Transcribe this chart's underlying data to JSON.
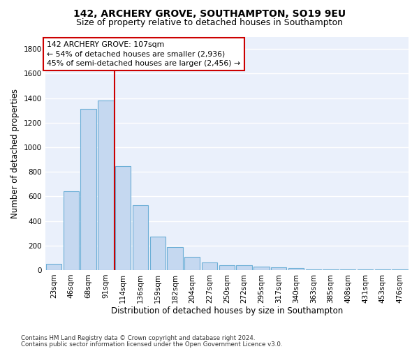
{
  "title1": "142, ARCHERY GROVE, SOUTHAMPTON, SO19 9EU",
  "title2": "Size of property relative to detached houses in Southampton",
  "xlabel": "Distribution of detached houses by size in Southampton",
  "ylabel": "Number of detached properties",
  "bar_labels": [
    "23sqm",
    "46sqm",
    "68sqm",
    "91sqm",
    "114sqm",
    "136sqm",
    "159sqm",
    "182sqm",
    "204sqm",
    "227sqm",
    "250sqm",
    "272sqm",
    "295sqm",
    "317sqm",
    "340sqm",
    "363sqm",
    "385sqm",
    "408sqm",
    "431sqm",
    "453sqm",
    "476sqm"
  ],
  "bar_values": [
    50,
    640,
    1310,
    1380,
    845,
    530,
    275,
    185,
    105,
    65,
    40,
    40,
    30,
    25,
    15,
    8,
    5,
    5,
    3,
    3,
    3
  ],
  "bar_color": "#C5D8F0",
  "bar_edge_color": "#6BAED6",
  "ylim": [
    0,
    1900
  ],
  "yticks": [
    0,
    200,
    400,
    600,
    800,
    1000,
    1200,
    1400,
    1600,
    1800
  ],
  "vline_x_index": 3,
  "vline_color": "#CC0000",
  "annotation_text": "142 ARCHERY GROVE: 107sqm\n← 54% of detached houses are smaller (2,936)\n45% of semi-detached houses are larger (2,456) →",
  "annotation_box_color": "#CC0000",
  "annotation_bg": "#FFFFFF",
  "footer1": "Contains HM Land Registry data © Crown copyright and database right 2024.",
  "footer2": "Contains public sector information licensed under the Open Government Licence v3.0.",
  "bg_color": "#FFFFFF",
  "plot_bg_color": "#EAF0FB",
  "grid_color": "#FFFFFF",
  "title1_fontsize": 10,
  "title2_fontsize": 9,
  "xlabel_fontsize": 8.5,
  "ylabel_fontsize": 8.5,
  "tick_fontsize": 7.5,
  "annotation_fontsize": 7.8,
  "footer_fontsize": 6.2
}
